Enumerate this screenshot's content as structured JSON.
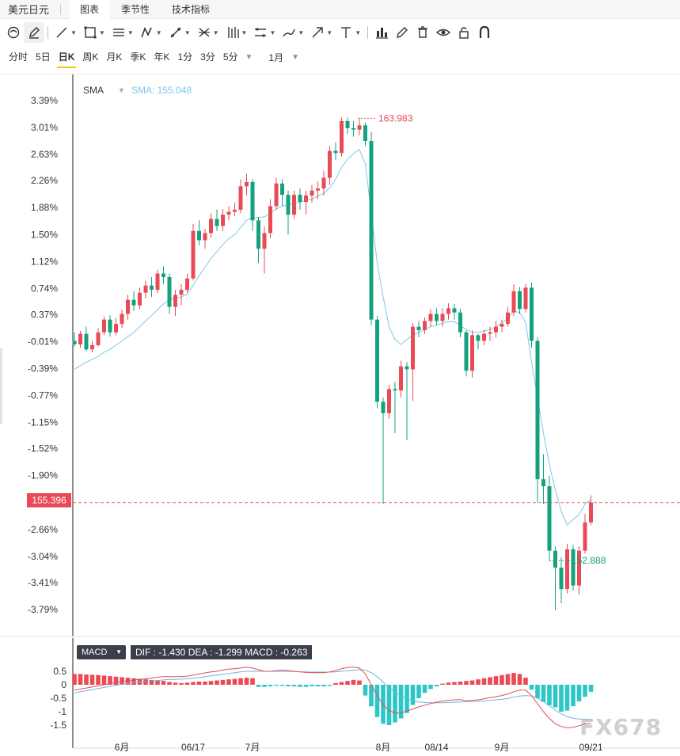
{
  "header": {
    "pair": "美元日元",
    "tabs": [
      {
        "label": "图表",
        "active": true
      },
      {
        "label": "季节性",
        "active": false
      },
      {
        "label": "技术指标",
        "active": false
      }
    ]
  },
  "toolbar": {
    "icons": [
      "cursor-icon",
      "pen-icon",
      "line-icon",
      "rect-icon",
      "parallel-lines-icon",
      "pattern-icon",
      "measure-icon",
      "fib-icon",
      "bars-icon",
      "channel-icon",
      "brush-icon",
      "arrow-icon",
      "text-icon",
      "chart-icon",
      "pencil-icon",
      "trash-icon",
      "eye-icon",
      "lock-icon",
      "magnet-icon"
    ]
  },
  "periods": {
    "items": [
      {
        "label": "分时",
        "active": false
      },
      {
        "label": "5日",
        "active": false
      },
      {
        "label": "日K",
        "active": true
      },
      {
        "label": "周K",
        "active": false
      },
      {
        "label": "月K",
        "active": false
      },
      {
        "label": "季K",
        "active": false
      },
      {
        "label": "年K",
        "active": false
      },
      {
        "label": "1分",
        "active": false
      },
      {
        "label": "3分",
        "active": false
      },
      {
        "label": "5分",
        "active": false
      }
    ],
    "range": "1月"
  },
  "indicator": {
    "name": "SMA",
    "value_text": "SMA: 155.048"
  },
  "macd": {
    "selector": "MACD",
    "values_text": "DIF : -1.430  DEA : -1.299  MACD : -0.263"
  },
  "last_price": "155.396",
  "watermark": "FX678",
  "colors": {
    "up": "#e84b55",
    "down": "#13a27d",
    "sma": "#7fc7e9",
    "dif": "#e84b55",
    "dea": "#69b7e3"
  },
  "chart_data": {
    "type": "candlestick",
    "y_axis_unit": "percent",
    "y_ticks": [
      "3.39%",
      "3.01%",
      "2.63%",
      "2.26%",
      "1.88%",
      "1.50%",
      "1.12%",
      "0.74%",
      "0.37%",
      "-0.01%",
      "-0.39%",
      "-0.77%",
      "-1.15%",
      "-1.52%",
      "-1.90%",
      "-2.28%",
      "-2.66%",
      "-3.04%",
      "-3.41%",
      "-3.79%"
    ],
    "y_tick_values": [
      3.39,
      3.01,
      2.63,
      2.26,
      1.88,
      1.5,
      1.12,
      0.74,
      0.37,
      -0.01,
      -0.39,
      -0.77,
      -1.15,
      -1.52,
      -1.9,
      -2.28,
      -2.66,
      -3.04,
      -3.41,
      -3.79
    ],
    "ylim": [
      -4.09,
      3.67
    ],
    "x_labels": [
      {
        "label": "6月",
        "index": 8
      },
      {
        "label": "06/17",
        "index": 20
      },
      {
        "label": "7月",
        "index": 30
      },
      {
        "label": "8月",
        "index": 52
      },
      {
        "label": "08/14",
        "index": 61
      },
      {
        "label": "9月",
        "index": 72
      },
      {
        "label": "09/21",
        "index": 87
      }
    ],
    "high_annotation": {
      "label": "163.983",
      "index": 48
    },
    "low_annotation": {
      "label": "152.888",
      "index": 80
    },
    "last_price_pct": -2.28,
    "candles": [
      [
        0.0,
        -0.05,
        0.12,
        -0.08
      ],
      [
        -0.05,
        0.1,
        0.14,
        -0.1
      ],
      [
        0.1,
        -0.12,
        0.2,
        -0.15
      ],
      [
        -0.12,
        -0.06,
        0.0,
        -0.16
      ],
      [
        -0.06,
        0.12,
        0.18,
        -0.08
      ],
      [
        0.12,
        0.3,
        0.35,
        0.08
      ],
      [
        0.3,
        0.12,
        0.36,
        0.06
      ],
      [
        0.12,
        0.24,
        0.32,
        0.08
      ],
      [
        0.24,
        0.38,
        0.44,
        0.18
      ],
      [
        0.38,
        0.58,
        0.65,
        0.3
      ],
      [
        0.58,
        0.5,
        0.7,
        0.42
      ],
      [
        0.5,
        0.68,
        0.75,
        0.45
      ],
      [
        0.68,
        0.78,
        0.85,
        0.6
      ],
      [
        0.78,
        0.72,
        0.9,
        0.62
      ],
      [
        0.72,
        0.95,
        1.0,
        0.68
      ],
      [
        0.95,
        0.9,
        1.05,
        0.8
      ],
      [
        0.9,
        0.48,
        0.95,
        0.38
      ],
      [
        0.48,
        0.65,
        0.72,
        0.35
      ],
      [
        0.65,
        0.72,
        0.8,
        0.5
      ],
      [
        0.72,
        0.88,
        0.95,
        0.68
      ],
      [
        0.88,
        1.55,
        1.65,
        0.85
      ],
      [
        1.55,
        1.42,
        1.7,
        1.35
      ],
      [
        1.42,
        1.52,
        1.58,
        1.3
      ],
      [
        1.52,
        1.72,
        1.8,
        1.45
      ],
      [
        1.72,
        1.62,
        1.85,
        1.55
      ],
      [
        1.62,
        1.78,
        1.86,
        1.55
      ],
      [
        1.78,
        1.82,
        1.9,
        1.7
      ],
      [
        1.82,
        1.85,
        1.95,
        1.76
      ],
      [
        1.85,
        2.18,
        2.28,
        1.8
      ],
      [
        2.18,
        2.24,
        2.36,
        2.05
      ],
      [
        2.24,
        1.7,
        2.28,
        1.55
      ],
      [
        1.7,
        1.3,
        1.75,
        1.1
      ],
      [
        1.3,
        1.52,
        1.62,
        0.95
      ],
      [
        1.52,
        1.9,
        2.0,
        1.45
      ],
      [
        1.9,
        2.22,
        2.3,
        1.85
      ],
      [
        2.22,
        2.06,
        2.28,
        1.9
      ],
      [
        2.06,
        1.78,
        2.12,
        1.5
      ],
      [
        1.78,
        2.06,
        2.12,
        1.72
      ],
      [
        2.06,
        1.96,
        2.15,
        1.85
      ],
      [
        1.96,
        2.05,
        2.12,
        1.78
      ],
      [
        2.05,
        2.12,
        2.2,
        1.95
      ],
      [
        2.12,
        2.15,
        2.25,
        2.0
      ],
      [
        2.15,
        2.3,
        2.4,
        2.05
      ],
      [
        2.3,
        2.68,
        2.75,
        2.2
      ],
      [
        2.68,
        2.65,
        2.8,
        2.55
      ],
      [
        2.65,
        3.1,
        3.15,
        2.6
      ],
      [
        3.1,
        3.0,
        3.15,
        2.92
      ],
      [
        3.0,
        2.98,
        3.1,
        2.88
      ],
      [
        2.98,
        3.04,
        3.14,
        2.9
      ],
      [
        3.04,
        2.82,
        3.08,
        2.75
      ],
      [
        2.82,
        0.3,
        2.95,
        0.22
      ],
      [
        0.3,
        -0.86,
        0.35,
        -0.95
      ],
      [
        -0.86,
        -1.02,
        -0.8,
        -2.3
      ],
      [
        -1.02,
        -0.68,
        -0.62,
        -1.1
      ],
      [
        -0.68,
        -0.7,
        -0.58,
        -1.3
      ],
      [
        -0.7,
        -0.36,
        -0.28,
        -0.8
      ],
      [
        -0.36,
        -0.4,
        -0.3,
        -1.4
      ],
      [
        -0.4,
        0.2,
        0.25,
        -0.85
      ],
      [
        0.2,
        0.15,
        0.28,
        0.05
      ],
      [
        0.15,
        0.28,
        0.33,
        0.1
      ],
      [
        0.28,
        0.38,
        0.45,
        0.2
      ],
      [
        0.38,
        0.28,
        0.46,
        0.22
      ],
      [
        0.28,
        0.38,
        0.46,
        0.2
      ],
      [
        0.38,
        0.46,
        0.53,
        0.3
      ],
      [
        0.46,
        0.4,
        0.52,
        0.3
      ],
      [
        0.4,
        0.12,
        0.45,
        0.05
      ],
      [
        0.12,
        -0.42,
        0.15,
        -0.5
      ],
      [
        -0.42,
        0.08,
        0.15,
        -0.52
      ],
      [
        0.08,
        0.0,
        0.1,
        -0.12
      ],
      [
        0.0,
        0.1,
        0.16,
        -0.06
      ],
      [
        0.1,
        0.12,
        0.2,
        0.0
      ],
      [
        0.12,
        0.2,
        0.28,
        0.05
      ],
      [
        0.2,
        0.24,
        0.3,
        0.12
      ],
      [
        0.24,
        0.4,
        0.48,
        0.2
      ],
      [
        0.4,
        0.7,
        0.8,
        0.35
      ],
      [
        0.7,
        0.45,
        0.76,
        0.38
      ],
      [
        0.45,
        0.75,
        0.8,
        0.4
      ],
      [
        0.75,
        0.0,
        0.82,
        -0.1
      ],
      [
        0.0,
        -1.95,
        0.05,
        -2.28
      ],
      [
        -1.95,
        -2.05,
        -1.6,
        -2.3
      ],
      [
        -2.05,
        -2.96,
        -1.9,
        -3.1
      ],
      [
        -2.96,
        -3.2,
        -2.9,
        -3.8
      ],
      [
        -3.2,
        -3.5,
        -3.05,
        -3.7
      ],
      [
        -3.5,
        -2.94,
        -2.86,
        -3.56
      ],
      [
        -2.94,
        -3.45,
        -2.88,
        -3.52
      ],
      [
        -3.45,
        -2.96,
        -2.9,
        -3.58
      ],
      [
        -2.96,
        -2.56,
        -2.44,
        -3.0
      ],
      [
        -2.56,
        -2.28,
        -2.18,
        -2.6
      ]
    ],
    "sma": [
      -0.4,
      -0.35,
      -0.3,
      -0.26,
      -0.22,
      -0.16,
      -0.12,
      -0.06,
      0.0,
      0.06,
      0.12,
      0.2,
      0.28,
      0.36,
      0.44,
      0.52,
      0.58,
      0.6,
      0.62,
      0.66,
      0.78,
      0.92,
      1.04,
      1.16,
      1.26,
      1.36,
      1.44,
      1.5,
      1.6,
      1.7,
      1.74,
      1.74,
      1.75,
      1.8,
      1.86,
      1.9,
      1.92,
      1.94,
      1.96,
      1.98,
      2.0,
      2.04,
      2.08,
      2.16,
      2.28,
      2.45,
      2.56,
      2.64,
      2.7,
      2.5,
      1.8,
      1.1,
      0.62,
      0.2,
      0.02,
      -0.05,
      0.02,
      0.08,
      0.12,
      0.16,
      0.2,
      0.22,
      0.25,
      0.27,
      0.27,
      0.22,
      0.16,
      0.12,
      0.12,
      0.14,
      0.16,
      0.2,
      0.25,
      0.32,
      0.42,
      0.4,
      0.26,
      -0.3,
      -0.8,
      -1.3,
      -1.75,
      -2.1,
      -2.4,
      -2.6,
      -2.52,
      -2.45,
      -2.3,
      -2.24
    ],
    "macd_ylim": [
      -1.8,
      0.75
    ],
    "macd_ticks": [
      0.5,
      0,
      -0.5,
      -1,
      -1.5
    ],
    "dif": [
      -0.2,
      -0.16,
      -0.12,
      -0.08,
      -0.04,
      0.0,
      0.04,
      0.08,
      0.12,
      0.15,
      0.18,
      0.2,
      0.22,
      0.25,
      0.28,
      0.3,
      0.3,
      0.3,
      0.3,
      0.32,
      0.36,
      0.4,
      0.44,
      0.48,
      0.5,
      0.55,
      0.58,
      0.6,
      0.62,
      0.66,
      0.62,
      0.56,
      0.5,
      0.5,
      0.52,
      0.54,
      0.52,
      0.5,
      0.48,
      0.46,
      0.45,
      0.45,
      0.45,
      0.48,
      0.52,
      0.6,
      0.64,
      0.66,
      0.62,
      0.4,
      0.0,
      -0.4,
      -0.75,
      -0.96,
      -1.05,
      -1.05,
      -0.98,
      -0.9,
      -0.82,
      -0.76,
      -0.7,
      -0.65,
      -0.6,
      -0.58,
      -0.56,
      -0.55,
      -0.6,
      -0.58,
      -0.56,
      -0.52,
      -0.48,
      -0.44,
      -0.4,
      -0.34,
      -0.26,
      -0.2,
      -0.2,
      -0.4,
      -0.7,
      -1.0,
      -1.25,
      -1.45,
      -1.55,
      -1.6,
      -1.58,
      -1.52,
      -1.46,
      -1.43
    ],
    "dea": [
      -0.3,
      -0.26,
      -0.22,
      -0.18,
      -0.14,
      -0.1,
      -0.06,
      -0.02,
      0.02,
      0.05,
      0.08,
      0.1,
      0.12,
      0.14,
      0.16,
      0.18,
      0.2,
      0.2,
      0.21,
      0.22,
      0.24,
      0.27,
      0.3,
      0.33,
      0.36,
      0.39,
      0.42,
      0.45,
      0.48,
      0.5,
      0.5,
      0.5,
      0.5,
      0.5,
      0.5,
      0.5,
      0.5,
      0.49,
      0.48,
      0.48,
      0.47,
      0.47,
      0.47,
      0.47,
      0.48,
      0.5,
      0.52,
      0.54,
      0.56,
      0.54,
      0.45,
      0.3,
      0.1,
      -0.1,
      -0.28,
      -0.42,
      -0.52,
      -0.6,
      -0.64,
      -0.66,
      -0.67,
      -0.67,
      -0.67,
      -0.66,
      -0.65,
      -0.64,
      -0.63,
      -0.62,
      -0.61,
      -0.6,
      -0.58,
      -0.56,
      -0.54,
      -0.51,
      -0.46,
      -0.42,
      -0.4,
      -0.42,
      -0.5,
      -0.62,
      -0.78,
      -0.94,
      -1.08,
      -1.18,
      -1.24,
      -1.27,
      -1.29,
      -1.3
    ],
    "macd_hist": [
      0.4,
      0.4,
      0.38,
      0.37,
      0.36,
      0.34,
      0.32,
      0.3,
      0.28,
      0.26,
      0.24,
      0.22,
      0.2,
      0.18,
      0.16,
      0.14,
      0.1,
      0.08,
      0.06,
      0.08,
      0.1,
      0.12,
      0.12,
      0.14,
      0.16,
      0.18,
      0.2,
      0.22,
      0.24,
      0.26,
      0.24,
      -0.08,
      -0.08,
      -0.06,
      -0.04,
      -0.04,
      -0.06,
      -0.06,
      -0.08,
      -0.08,
      -0.06,
      -0.06,
      -0.06,
      -0.04,
      0.06,
      0.1,
      0.14,
      0.18,
      0.16,
      -0.4,
      -0.8,
      -1.2,
      -1.45,
      -1.5,
      -1.4,
      -1.25,
      -1.05,
      -0.75,
      -0.5,
      -0.3,
      -0.16,
      -0.06,
      0.04,
      0.08,
      0.1,
      0.12,
      0.14,
      0.16,
      0.2,
      0.24,
      0.28,
      0.32,
      0.36,
      0.4,
      0.44,
      0.4,
      0.26,
      -0.18,
      -0.5,
      -0.64,
      -0.76,
      -0.84,
      -1.0,
      -0.96,
      -0.8,
      -0.62,
      -0.45,
      -0.26
    ]
  }
}
